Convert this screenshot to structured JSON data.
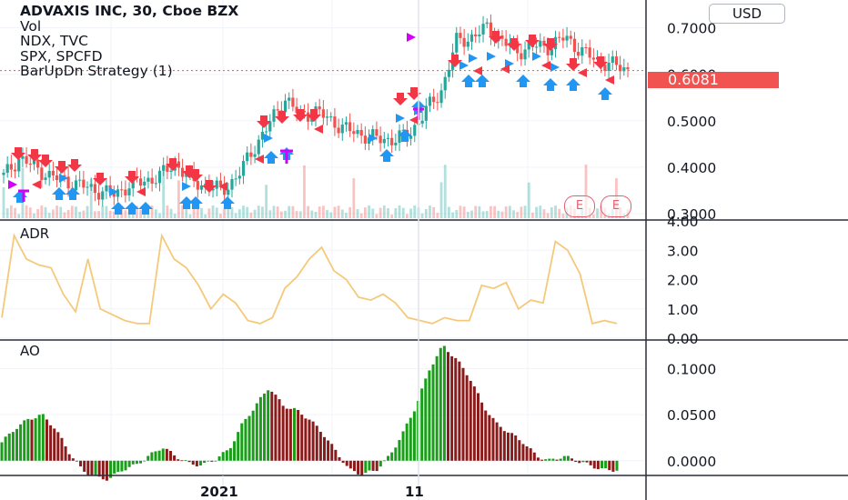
{
  "legend": {
    "symbol_line": "ADVAXIS INC, 30, Cboe BZX",
    "vol": "Vol",
    "ndx": "NDX, TVC",
    "spx": "SPX, SPCFD",
    "strategy": "BarUpDn Strategy (1)"
  },
  "currency_button": "USD",
  "last_price_label": "0.6081",
  "earnings_markers": [
    "E",
    "E"
  ],
  "colors": {
    "up": "#26a69a",
    "down": "#ef5350",
    "ao_up": "#1a9e1a",
    "ao_down": "#8b1a1a",
    "adr_line": "#f5c97a",
    "buy_arrow": "#2196f3",
    "sell_arrow": "#f23645",
    "magenta": "#d500f9",
    "price_line": "#f05350"
  },
  "chart_data": [
    {
      "type": "candlestick",
      "pane": "price",
      "title": "ADVAXIS INC, 30, Cboe BZX",
      "y_ticks": [
        "0.7000",
        "0.6000",
        "0.5000",
        "0.4000",
        "0.3000"
      ],
      "ylim": [
        0.29,
        0.76
      ],
      "last_price": 0.6081,
      "x_ticks": [
        "2021",
        "11"
      ],
      "approx_close_path": [
        0.38,
        0.42,
        0.4,
        0.38,
        0.37,
        0.36,
        0.35,
        0.34,
        0.36,
        0.37,
        0.38,
        0.41,
        0.37,
        0.36,
        0.35,
        0.38,
        0.44,
        0.49,
        0.55,
        0.51,
        0.52,
        0.5,
        0.48,
        0.47,
        0.46,
        0.46,
        0.47,
        0.52,
        0.56,
        0.67,
        0.68,
        0.7,
        0.67,
        0.65,
        0.66,
        0.66,
        0.68,
        0.65,
        0.63,
        0.62,
        0.61
      ],
      "volume_shown": true
    },
    {
      "type": "line",
      "pane": "ADR",
      "title": "ADR",
      "y_ticks": [
        "4.00",
        "3.00",
        "2.00",
        "1.00",
        "0.00"
      ],
      "ylim": [
        0,
        4
      ],
      "values": [
        0.7,
        3.5,
        2.7,
        2.5,
        2.4,
        1.5,
        0.9,
        2.7,
        1.0,
        0.8,
        0.6,
        0.5,
        0.5,
        3.5,
        2.7,
        2.4,
        1.8,
        1.0,
        1.5,
        1.2,
        0.6,
        0.5,
        0.7,
        1.7,
        2.1,
        2.7,
        3.1,
        2.3,
        2.0,
        1.4,
        1.3,
        1.5,
        1.2,
        0.7,
        0.6,
        0.5,
        0.7,
        0.6,
        0.6,
        1.8,
        1.7,
        1.9,
        1.0,
        1.3,
        1.2,
        3.3,
        3.0,
        2.2,
        0.5,
        0.6,
        0.5
      ]
    },
    {
      "type": "bar",
      "pane": "AO",
      "title": "AO",
      "y_ticks": [
        "0.1000",
        "0.0500",
        "0.0000"
      ],
      "ylim": [
        -0.015,
        0.13
      ],
      "values": [
        0.02,
        0.035,
        0.045,
        0.05,
        0.035,
        0.01,
        -0.01,
        -0.018,
        -0.02,
        -0.01,
        -0.005,
        0.005,
        0.015,
        0.005,
        -0.003,
        -0.005,
        0.002,
        0.012,
        0.04,
        0.06,
        0.08,
        0.06,
        0.055,
        0.045,
        0.03,
        0.01,
        -0.01,
        -0.015,
        -0.01,
        0.005,
        0.03,
        0.06,
        0.1,
        0.125,
        0.11,
        0.09,
        0.06,
        0.04,
        0.03,
        0.02,
        0.005,
        0.0,
        0.005,
        0.0,
        -0.005,
        -0.01,
        -0.01
      ]
    }
  ]
}
